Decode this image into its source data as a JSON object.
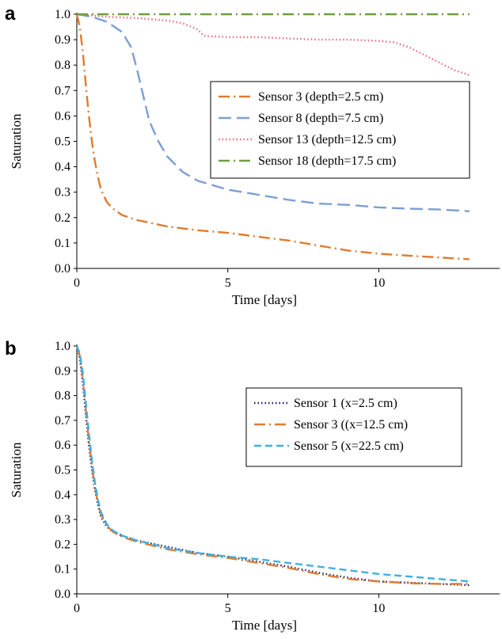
{
  "chart_data": [
    {
      "panel": "a",
      "type": "line",
      "xlabel": "Time [days]",
      "ylabel": "Saturation",
      "xlim": [
        0,
        14
      ],
      "ylim": [
        0,
        1
      ],
      "xticks": [
        0,
        5,
        10
      ],
      "yticks": [
        "0.0",
        "0.1",
        "0.2",
        "0.3",
        "0.4",
        "0.5",
        "0.6",
        "0.7",
        "0.8",
        "0.9",
        "1.0"
      ],
      "grid": false,
      "legend_position": "right",
      "series": [
        {
          "name": "Sensor 3 (depth=2.5 cm)",
          "color": "#e07b2f",
          "dash": "dashdot",
          "x": [
            0,
            0.1,
            0.2,
            0.3,
            0.4,
            0.5,
            0.6,
            0.7,
            0.8,
            1.0,
            1.2,
            1.5,
            2,
            3,
            4,
            5,
            6,
            7,
            8,
            9,
            10,
            11,
            12,
            13
          ],
          "y": [
            1.0,
            0.95,
            0.85,
            0.72,
            0.6,
            0.5,
            0.42,
            0.36,
            0.31,
            0.26,
            0.235,
            0.21,
            0.19,
            0.165,
            0.15,
            0.14,
            0.125,
            0.11,
            0.09,
            0.07,
            0.058,
            0.05,
            0.043,
            0.036
          ]
        },
        {
          "name": "Sensor 8 (depth=7.5 cm)",
          "color": "#7b9fd4",
          "dash": "longdash",
          "x": [
            0,
            0.5,
            1.0,
            1.5,
            1.8,
            2.0,
            2.2,
            2.4,
            2.7,
            3.0,
            3.5,
            4.0,
            5,
            6,
            7,
            8,
            9,
            10,
            11,
            12,
            13
          ],
          "y": [
            1.0,
            0.99,
            0.97,
            0.93,
            0.87,
            0.78,
            0.68,
            0.58,
            0.5,
            0.44,
            0.38,
            0.345,
            0.31,
            0.29,
            0.27,
            0.255,
            0.25,
            0.24,
            0.235,
            0.232,
            0.225
          ]
        },
        {
          "name": "Sensor 13 (depth=12.5 cm)",
          "color": "#e0707a",
          "dash": "dotted",
          "x": [
            0,
            1,
            2,
            3,
            3.5,
            4,
            4.2,
            5,
            6,
            7,
            8,
            9,
            10,
            10.5,
            11,
            11.5,
            12,
            12.5,
            13
          ],
          "y": [
            1.0,
            0.99,
            0.985,
            0.975,
            0.965,
            0.94,
            0.915,
            0.91,
            0.91,
            0.905,
            0.9,
            0.9,
            0.895,
            0.89,
            0.87,
            0.84,
            0.81,
            0.78,
            0.76
          ]
        },
        {
          "name": "Sensor 18 (depth=17.5 cm)",
          "color": "#6e9e3d",
          "dash": "dashdot",
          "x": [
            0,
            13
          ],
          "y": [
            1.0,
            1.0
          ]
        }
      ]
    },
    {
      "panel": "b",
      "type": "line",
      "xlabel": "Time [days]",
      "ylabel": "Saturation",
      "xlim": [
        0,
        14
      ],
      "ylim": [
        0,
        1
      ],
      "xticks": [
        0,
        5,
        10
      ],
      "yticks": [
        "0.0",
        "0.1",
        "0.2",
        "0.3",
        "0.4",
        "0.5",
        "0.6",
        "0.7",
        "0.8",
        "0.9",
        "1.0"
      ],
      "grid": false,
      "legend_position": "right",
      "series": [
        {
          "name": "Sensor 1 (x=2.5 cm)",
          "color": "#1f1f6b",
          "dash": "dotted",
          "x": [
            0,
            0.1,
            0.2,
            0.3,
            0.4,
            0.5,
            0.6,
            0.7,
            0.8,
            1.0,
            1.2,
            1.5,
            2,
            3,
            4,
            5,
            6,
            7,
            8,
            9,
            10,
            11,
            12,
            13
          ],
          "y": [
            1.0,
            0.95,
            0.85,
            0.72,
            0.6,
            0.5,
            0.42,
            0.36,
            0.31,
            0.27,
            0.25,
            0.235,
            0.215,
            0.19,
            0.165,
            0.15,
            0.13,
            0.11,
            0.085,
            0.065,
            0.05,
            0.045,
            0.04,
            0.035
          ]
        },
        {
          "name": "Sensor 3 ((x=12.5 cm)",
          "color": "#e07b2f",
          "dash": "dashdot",
          "x": [
            0,
            0.1,
            0.2,
            0.3,
            0.4,
            0.5,
            0.6,
            0.7,
            0.8,
            1.0,
            1.2,
            1.5,
            2,
            3,
            4,
            5,
            6,
            7,
            8,
            9,
            10,
            11,
            12,
            13
          ],
          "y": [
            1.0,
            0.96,
            0.87,
            0.74,
            0.62,
            0.52,
            0.43,
            0.37,
            0.32,
            0.275,
            0.25,
            0.23,
            0.21,
            0.18,
            0.16,
            0.145,
            0.125,
            0.105,
            0.08,
            0.06,
            0.05,
            0.043,
            0.04,
            0.04
          ]
        },
        {
          "name": "Sensor 5 (x=22.5 cm)",
          "color": "#3fb0e0",
          "dash": "dashed",
          "x": [
            0,
            0.1,
            0.2,
            0.3,
            0.4,
            0.5,
            0.6,
            0.7,
            0.8,
            1.0,
            1.2,
            1.5,
            2,
            3,
            4,
            5,
            6,
            7,
            8,
            9,
            10,
            11,
            12,
            13
          ],
          "y": [
            1.0,
            0.97,
            0.89,
            0.77,
            0.65,
            0.54,
            0.45,
            0.38,
            0.33,
            0.28,
            0.255,
            0.235,
            0.215,
            0.185,
            0.165,
            0.15,
            0.14,
            0.125,
            0.11,
            0.095,
            0.08,
            0.07,
            0.06,
            0.05
          ]
        }
      ]
    }
  ]
}
